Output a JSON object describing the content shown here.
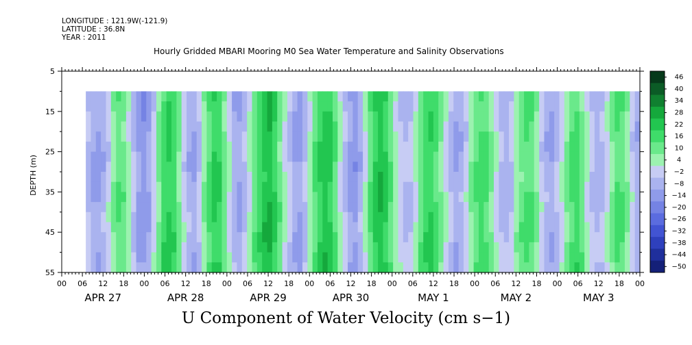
{
  "header": {
    "longitude": "LONGITUDE : 121.9W(-121.9)",
    "latitude": "LATITUDE : 36.8N",
    "year": "YEAR : 2011"
  },
  "chart_data": {
    "type": "heatmap",
    "title": "Hourly Gridded MBARI Mooring M0 Sea Water Temperature and Salinity Observations",
    "xlabel": "U Component of Water Velocity (cm s−1)",
    "ylabel": "DEPTH (m)",
    "ylim": [
      5,
      55
    ],
    "y_ticks": [
      5,
      15,
      25,
      35,
      45,
      55
    ],
    "data_depth_range": [
      10,
      55
    ],
    "x_hour_ticks": [
      "00",
      "06",
      "12",
      "18",
      "00",
      "06",
      "12",
      "18",
      "00",
      "06",
      "12",
      "18",
      "00",
      "06",
      "12",
      "18",
      "00",
      "06",
      "12",
      "18",
      "00",
      "06",
      "12",
      "18",
      "00",
      "06",
      "12",
      "18",
      "00"
    ],
    "x_day_labels": [
      "APR 27",
      "APR 28",
      "APR 29",
      "APR 30",
      "MAY  1",
      "MAY  2",
      "MAY  3"
    ],
    "data_start_hour": 7,
    "colorbar": {
      "levels": [
        46,
        40,
        34,
        28,
        22,
        16,
        10,
        4,
        -2,
        -8,
        -14,
        -20,
        -26,
        -32,
        -38,
        -44,
        -50
      ],
      "colors_positive": [
        "#06391a",
        "#0b5b26",
        "#108030",
        "#15a83c",
        "#22c650",
        "#3fdc6a",
        "#6ae98b",
        "#9cf2b0"
      ],
      "colors_negative": [
        "#c7ccf4",
        "#aab3ef",
        "#8f9bea",
        "#7583e4",
        "#5b6cdf",
        "#4254d3",
        "#2e40bd",
        "#1f2f9c",
        "#142078"
      ]
    },
    "column_u_velocity": [
      -10,
      -14,
      -16,
      -12,
      -6,
      2,
      8,
      6,
      0,
      -8,
      -16,
      -18,
      -14,
      -6,
      4,
      12,
      16,
      12,
      4,
      -6,
      -12,
      -14,
      -8,
      2,
      10,
      16,
      14,
      6,
      -4,
      -12,
      -14,
      -10,
      -2,
      6,
      12,
      18,
      20,
      14,
      6,
      -2,
      -8,
      -14,
      -16,
      -10,
      0,
      8,
      14,
      18,
      16,
      8,
      -2,
      -10,
      -16,
      -18,
      -12,
      -2,
      8,
      16,
      20,
      16,
      8,
      0,
      -6,
      -10,
      -8,
      -2,
      6,
      12,
      14,
      10,
      4,
      -4,
      -10,
      -14,
      -12,
      -6,
      2,
      8,
      12,
      10,
      4,
      -4,
      -10,
      -12,
      -8,
      0,
      6,
      10,
      8,
      2,
      -6,
      -12,
      -14,
      -10,
      -4,
      4,
      10,
      12,
      6,
      -2,
      -8,
      -12,
      -10,
      -4,
      4,
      10,
      8,
      2,
      -6,
      -12
    ]
  }
}
